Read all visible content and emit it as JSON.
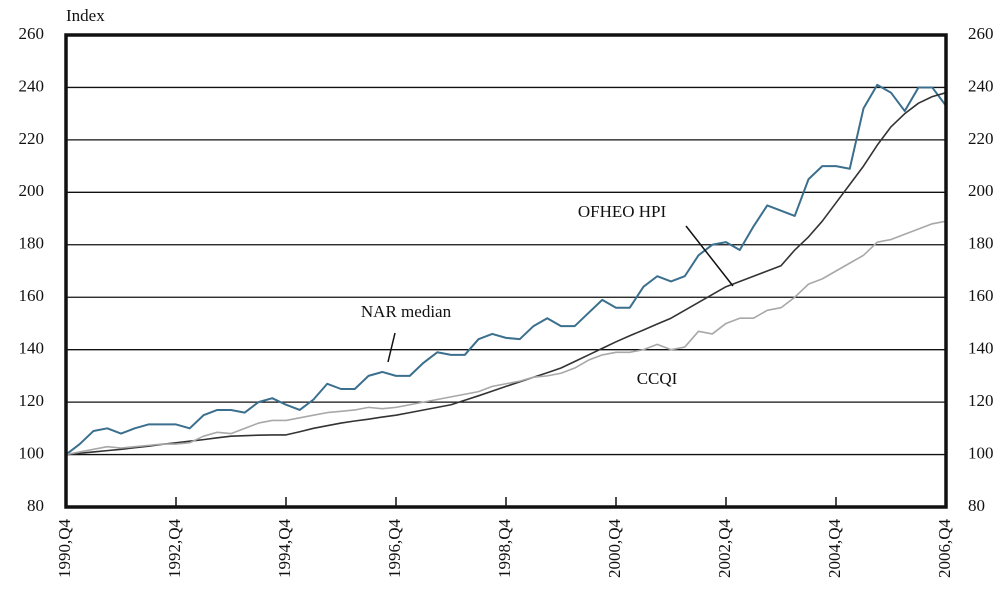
{
  "chart_data": {
    "type": "line",
    "title": "Index",
    "categories": [
      "1990,Q4",
      null,
      null,
      null,
      null,
      null,
      null,
      null,
      "1992,Q4",
      null,
      null,
      null,
      null,
      null,
      null,
      null,
      "1994,Q4",
      null,
      null,
      null,
      null,
      null,
      null,
      null,
      "1996,Q4",
      null,
      null,
      null,
      null,
      null,
      null,
      null,
      "1998,Q4",
      null,
      null,
      null,
      null,
      null,
      null,
      null,
      "2000,Q4",
      null,
      null,
      null,
      null,
      null,
      null,
      null,
      "2002,Q4",
      null,
      null,
      null,
      null,
      null,
      null,
      null,
      "2004,Q4",
      null,
      null,
      null,
      null,
      null,
      null,
      null,
      "2006,Q4"
    ],
    "series": [
      {
        "name": "NAR median",
        "color": "#3b6f8e",
        "values": [
          100,
          104,
          109,
          110,
          108,
          110,
          111.5,
          111.5,
          111.5,
          110,
          115,
          117,
          117,
          116,
          120,
          121.5,
          119,
          117,
          121,
          127,
          125,
          125,
          130,
          131.5,
          130,
          130,
          135,
          139,
          138,
          138,
          144,
          146,
          144.5,
          144,
          149,
          152,
          149,
          149,
          154,
          159,
          156,
          156,
          164,
          168,
          166,
          168,
          176,
          180,
          181,
          178,
          187,
          195,
          193,
          191,
          205,
          210,
          210,
          209,
          232,
          241,
          238,
          231,
          240,
          240,
          233
        ]
      },
      {
        "name": "OFHEO HPI",
        "color": "#333333",
        "values": [
          100,
          100.5,
          101,
          101.5,
          102,
          102.6,
          103.2,
          103.9,
          104.5,
          105.1,
          105.7,
          106.4,
          107,
          107.2,
          107.4,
          107.5,
          107.5,
          108.7,
          110,
          111,
          112,
          112.8,
          113.5,
          114.3,
          115,
          116,
          117,
          118,
          119,
          120.7,
          122.4,
          124.2,
          126,
          127.7,
          129.5,
          131.2,
          133,
          135.5,
          138,
          140.5,
          143,
          145.3,
          147.5,
          149.8,
          152,
          155,
          158,
          161,
          164,
          166,
          168,
          170,
          172,
          178,
          183,
          189,
          196,
          203,
          210,
          218,
          225,
          230,
          234,
          236.5,
          238
        ]
      },
      {
        "name": "CCQI",
        "color": "#a8a8a8",
        "values": [
          100,
          101,
          102,
          103,
          102.5,
          103,
          103.5,
          104,
          104,
          104.5,
          107,
          108.5,
          108,
          110,
          112,
          113,
          113,
          114,
          115,
          116,
          116.5,
          117,
          118,
          117.5,
          118,
          119,
          120,
          121,
          122,
          123,
          124,
          126,
          127,
          128,
          129.5,
          130,
          131,
          133,
          136,
          138,
          139,
          139,
          140,
          142,
          140,
          141,
          147,
          146,
          150,
          152,
          152,
          155,
          156,
          160,
          165,
          167,
          170,
          173,
          176,
          181,
          182,
          184,
          186,
          188,
          189
        ]
      }
    ],
    "ylim": [
      80,
      260
    ],
    "yticks": [
      80,
      100,
      120,
      140,
      160,
      180,
      200,
      220,
      240,
      260
    ],
    "y2lim": [
      80,
      260
    ],
    "y2ticks": [
      80,
      100,
      120,
      140,
      160,
      180,
      200,
      220,
      240,
      260
    ],
    "grid": true
  }
}
